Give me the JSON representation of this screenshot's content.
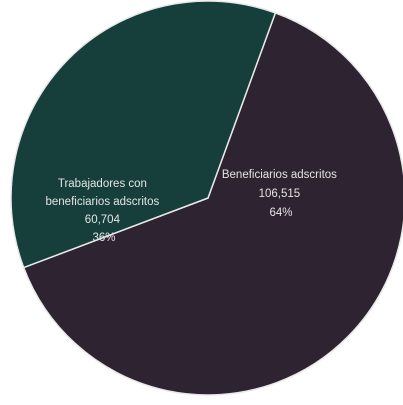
{
  "chart_data": {
    "type": "pie",
    "title": "",
    "slices": [
      {
        "name": "Beneficiarios adscritos",
        "value": 106515,
        "value_label": "106,515",
        "percent_label": "64%",
        "color": "#2e2330"
      },
      {
        "name": "Trabajadores con beneficiarios adscritos",
        "value": 60704,
        "value_label": "60,704",
        "percent_label": "36%",
        "color": "#163f3b"
      }
    ],
    "slice_border_color": "#e8e8e8",
    "legend": "none"
  }
}
